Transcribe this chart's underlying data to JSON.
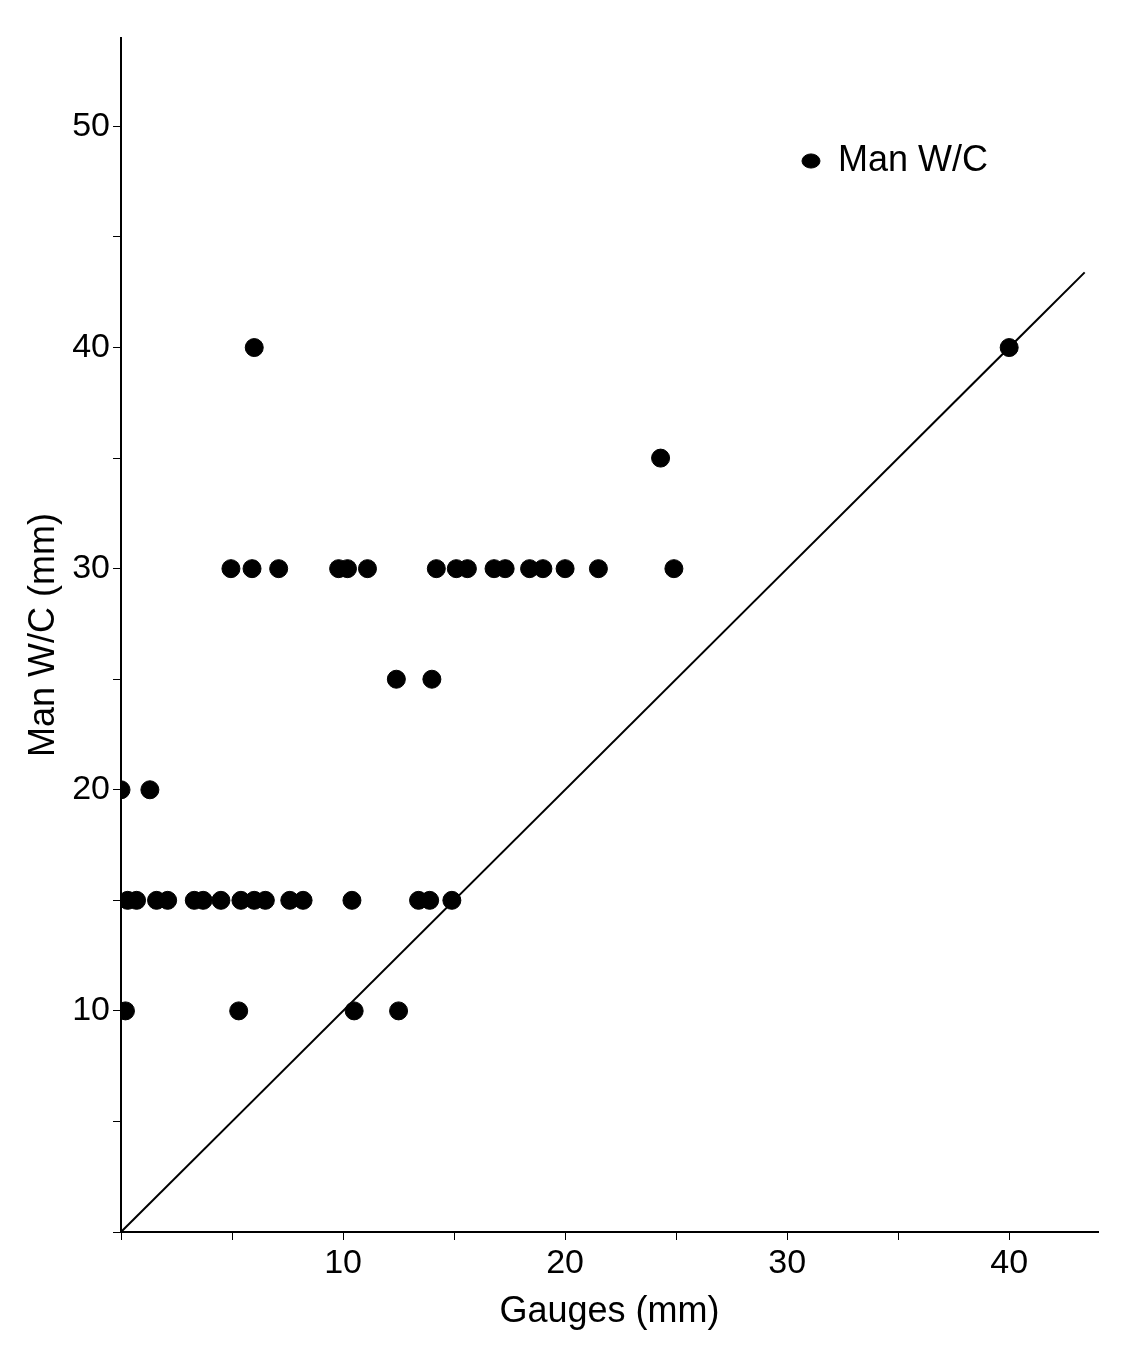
{
  "chart_data": {
    "type": "scatter",
    "xlabel": "Gauges (mm)",
    "ylabel": "Man W/C (mm)",
    "xlim": [
      0,
      44
    ],
    "ylim": [
      0,
      54
    ],
    "xticks": [
      {
        "value": 0,
        "label": null
      },
      {
        "value": 5,
        "label": null
      },
      10,
      {
        "value": 15,
        "label": null
      },
      20,
      {
        "value": 25,
        "label": null
      },
      30,
      {
        "value": 35,
        "label": null
      },
      40
    ],
    "yticks": [
      {
        "value": 0,
        "label": null
      },
      {
        "value": 5,
        "label": null
      },
      10,
      {
        "value": 15,
        "label": null
      },
      20,
      {
        "value": 25,
        "label": null
      },
      30,
      {
        "value": 35,
        "label": null
      },
      40,
      {
        "value": 45,
        "label": null
      },
      50
    ],
    "grid": false,
    "legend": "top right",
    "marker": "circle",
    "series": [
      {
        "name": "Man W/C",
        "color": "#000000",
        "x": [
          0.2,
          5.3,
          10.5,
          12.5,
          0.3,
          0.7,
          1.6,
          2.1,
          3.3,
          3.7,
          4.5,
          5.4,
          6.0,
          6.5,
          7.6,
          8.2,
          10.4,
          13.4,
          13.9,
          14.9,
          0,
          1.3,
          12.4,
          14.0,
          4.95,
          5.9,
          7.1,
          9.8,
          10.2,
          11.1,
          14.2,
          15.1,
          15.6,
          16.8,
          17.3,
          18.4,
          19.0,
          20.0,
          21.5,
          24.9,
          24.3,
          6.0,
          40
        ],
        "values": [
          10,
          10,
          10,
          10,
          15,
          15,
          15,
          15,
          15,
          15,
          15,
          15,
          15,
          15,
          15,
          15,
          15,
          15,
          15,
          15,
          20,
          20,
          25,
          25,
          30,
          30,
          30,
          30,
          30,
          30,
          30,
          30,
          30,
          30,
          30,
          30,
          30,
          30,
          30,
          30,
          35,
          40,
          40
        ]
      },
      {
        "type": "line",
        "color": "#000000",
        "line_style": "solid",
        "marker": "none",
        "x": [
          0,
          43.4
        ],
        "values": [
          0,
          43.4
        ]
      }
    ]
  }
}
